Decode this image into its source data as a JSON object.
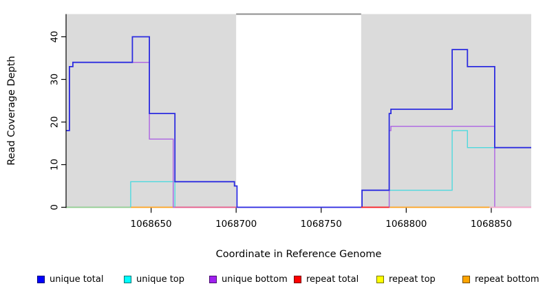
{
  "chart_data": {
    "type": "line",
    "subtype": "step-coverage-plot",
    "title": "",
    "xlabel": "Coordinate in Reference Genome",
    "ylabel": "Read Coverage Depth",
    "x_range": [
      1068600,
      1068873.5
    ],
    "y_range": [
      0,
      45.3
    ],
    "x_ticks": [
      "1068650",
      "1068700",
      "1068750",
      "1068800",
      "1068850"
    ],
    "x_tick_values": [
      1068650,
      1068700,
      1068750,
      1068800,
      1068850
    ],
    "y_ticks": [
      "0",
      "10",
      "20",
      "30",
      "40"
    ],
    "y_tick_values": [
      0,
      10,
      20,
      30,
      40
    ],
    "grid": "off",
    "legend_position": "bottom",
    "background_bands": [
      {
        "name": "left-flank-region",
        "x1": 1068600,
        "x2": 1068700,
        "color": "#DBDBDB"
      },
      {
        "name": "right-flank-region",
        "x1": 1068773.5,
        "x2": 1068873.5,
        "color": "#DBDBDB"
      }
    ],
    "gap_marker": {
      "name": "repeat-gap-top-bar",
      "x1": 1068700,
      "x2": 1068773.5,
      "color": "#8C8C8C"
    },
    "zero_segments": [
      {
        "name": "zero-green",
        "x1": 1068600,
        "x2": 1068638,
        "color": "#8FCD8F",
        "layer": "under"
      },
      {
        "name": "zero-orange-left",
        "x1": 1068638,
        "x2": 1068664,
        "color": "#FFA21F",
        "layer": "under"
      },
      {
        "name": "zero-orange-right",
        "x1": 1068790,
        "x2": 1068849,
        "color": "#FFA21F",
        "layer": "under"
      },
      {
        "name": "zero-pinkred",
        "x1": 1068664,
        "x2": 1068700,
        "color": "#E85E88",
        "layer": "over"
      },
      {
        "name": "zero-red",
        "x1": 1068773.5,
        "x2": 1068790,
        "color": "#FB1E1E",
        "layer": "over"
      },
      {
        "name": "zero-pink",
        "x1": 1068849,
        "x2": 1068873.5,
        "color": "#F6A8C8",
        "layer": "over"
      }
    ],
    "series": [
      {
        "name": "unique top",
        "color": "#4ED9DE",
        "width": 1.4,
        "segments": [
          [
            [
              1068638,
              0
            ],
            [
              1068638,
              6
            ],
            [
              1068664,
              6
            ],
            [
              1068664,
              0
            ]
          ],
          [
            [
              1068790,
              0
            ],
            [
              1068790,
              4
            ],
            [
              1068827,
              4
            ],
            [
              1068827,
              18
            ],
            [
              1068836,
              18
            ],
            [
              1068836,
              14
            ],
            [
              1068873.5,
              14
            ]
          ]
        ]
      },
      {
        "name": "unique bottom",
        "color": "#AC62E3",
        "width": 1.4,
        "segments": [
          [
            [
              1068600,
              18
            ],
            [
              1068602,
              18
            ],
            [
              1068602,
              33
            ],
            [
              1068604,
              33
            ],
            [
              1068604,
              34
            ],
            [
              1068649,
              34
            ],
            [
              1068649,
              16
            ],
            [
              1068663,
              16
            ],
            [
              1068663,
              0
            ],
            [
              1068790,
              0
            ],
            [
              1068790,
              18
            ],
            [
              1068791,
              18
            ],
            [
              1068791,
              19
            ],
            [
              1068852,
              19
            ],
            [
              1068852,
              0
            ],
            [
              1068873.5,
              0
            ]
          ]
        ]
      },
      {
        "name": "unique total",
        "color": "#2B2BE0",
        "width": 1.8,
        "segments": [
          [
            [
              1068600,
              18
            ],
            [
              1068602,
              18
            ],
            [
              1068602,
              33
            ],
            [
              1068604,
              33
            ],
            [
              1068604,
              34
            ],
            [
              1068639,
              34
            ],
            [
              1068639,
              40
            ],
            [
              1068649,
              40
            ],
            [
              1068649,
              22
            ],
            [
              1068664,
              22
            ],
            [
              1068664,
              6
            ],
            [
              1068699,
              6
            ],
            [
              1068699,
              5
            ],
            [
              1068700.5,
              5
            ],
            [
              1068700.5,
              0
            ],
            [
              1068774,
              0
            ],
            [
              1068774,
              4
            ],
            [
              1068790,
              4
            ],
            [
              1068790,
              22
            ],
            [
              1068791,
              22
            ],
            [
              1068791,
              23
            ],
            [
              1068827,
              23
            ],
            [
              1068827,
              37
            ],
            [
              1068836,
              37
            ],
            [
              1068836,
              33
            ],
            [
              1068852,
              33
            ],
            [
              1068852,
              14
            ],
            [
              1068873.5,
              14
            ]
          ]
        ]
      }
    ],
    "legend": [
      {
        "label": "unique total",
        "color": "#0000FF"
      },
      {
        "label": "unique top",
        "color": "#00FFFF"
      },
      {
        "label": "unique bottom",
        "color": "#A020F0"
      },
      {
        "label": "repeat total",
        "color": "#FF0000"
      },
      {
        "label": "repeat top",
        "color": "#FFFF00"
      },
      {
        "label": "repeat bottom",
        "color": "#FFA500"
      }
    ]
  }
}
